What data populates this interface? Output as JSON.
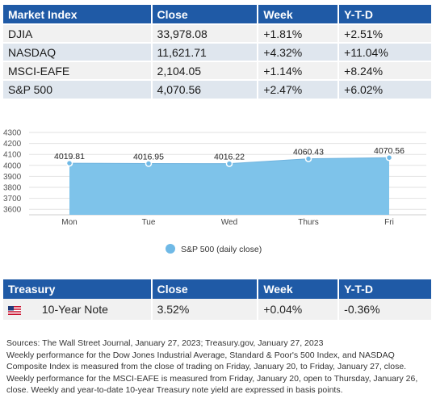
{
  "market_table": {
    "headers": [
      "Market Index",
      "Close",
      "Week",
      "Y-T-D"
    ],
    "rows": [
      {
        "name": "DJIA",
        "close": "33,978.08",
        "week": "+1.81%",
        "ytd": "+2.51%"
      },
      {
        "name": "NASDAQ",
        "close": "11,621.71",
        "week": "+4.32%",
        "ytd": "+11.04%"
      },
      {
        "name": "MSCI-EAFE",
        "close": "2,104.05",
        "week": "+1.14%",
        "ytd": "+8.24%"
      },
      {
        "name": "S&P 500",
        "close": "4,070.56",
        "week": "+2.47%",
        "ytd": "+6.02%"
      }
    ]
  },
  "chart_data": {
    "type": "area",
    "categories": [
      "Mon",
      "Tue",
      "Wed",
      "Thurs",
      "Fri"
    ],
    "series": [
      {
        "name": "S&P 500 (daily close)",
        "values": [
          4019.81,
          4016.95,
          4016.22,
          4060.43,
          4070.56
        ]
      }
    ],
    "data_labels": [
      "4019.81",
      "4016.95",
      "4016.22",
      "4060.43",
      "4070.56"
    ],
    "yticks": [
      3600,
      3700,
      3800,
      3900,
      4000,
      4100,
      4200,
      4300
    ],
    "ylim": [
      3550,
      4300
    ],
    "grid": true,
    "legend": "bottom-center",
    "color": "#7ec3ea",
    "marker_color": "#6fb9e6"
  },
  "treasury_table": {
    "headers": [
      "Treasury",
      "Close",
      "Week",
      "Y-T-D"
    ],
    "row": {
      "icon": "us-flag-icon",
      "name": "10-Year Note",
      "close": "3.52%",
      "week": "+0.04%",
      "ytd": "-0.36%"
    }
  },
  "notes": [
    "Sources: The Wall Street Journal, January 27, 2023; Treasury.gov, January 27, 2023",
    "Weekly performance for the Dow Jones Industrial Average, Standard & Poor's 500 Index, and NASDAQ",
    "Composite Index is measured from the close of trading on Friday, January 20, to Friday, January 27, close.",
    "Weekly performance for the MSCI-EAFE is measured from Friday, January 20, open to Thursday, January 26,",
    "close. Weekly and year-to-date 10-year Treasury note yield are expressed in basis points."
  ],
  "colors": {
    "header": "#1f5aa6",
    "row_light": "#f1f1f1",
    "row_alt": "#dfe6ee"
  }
}
